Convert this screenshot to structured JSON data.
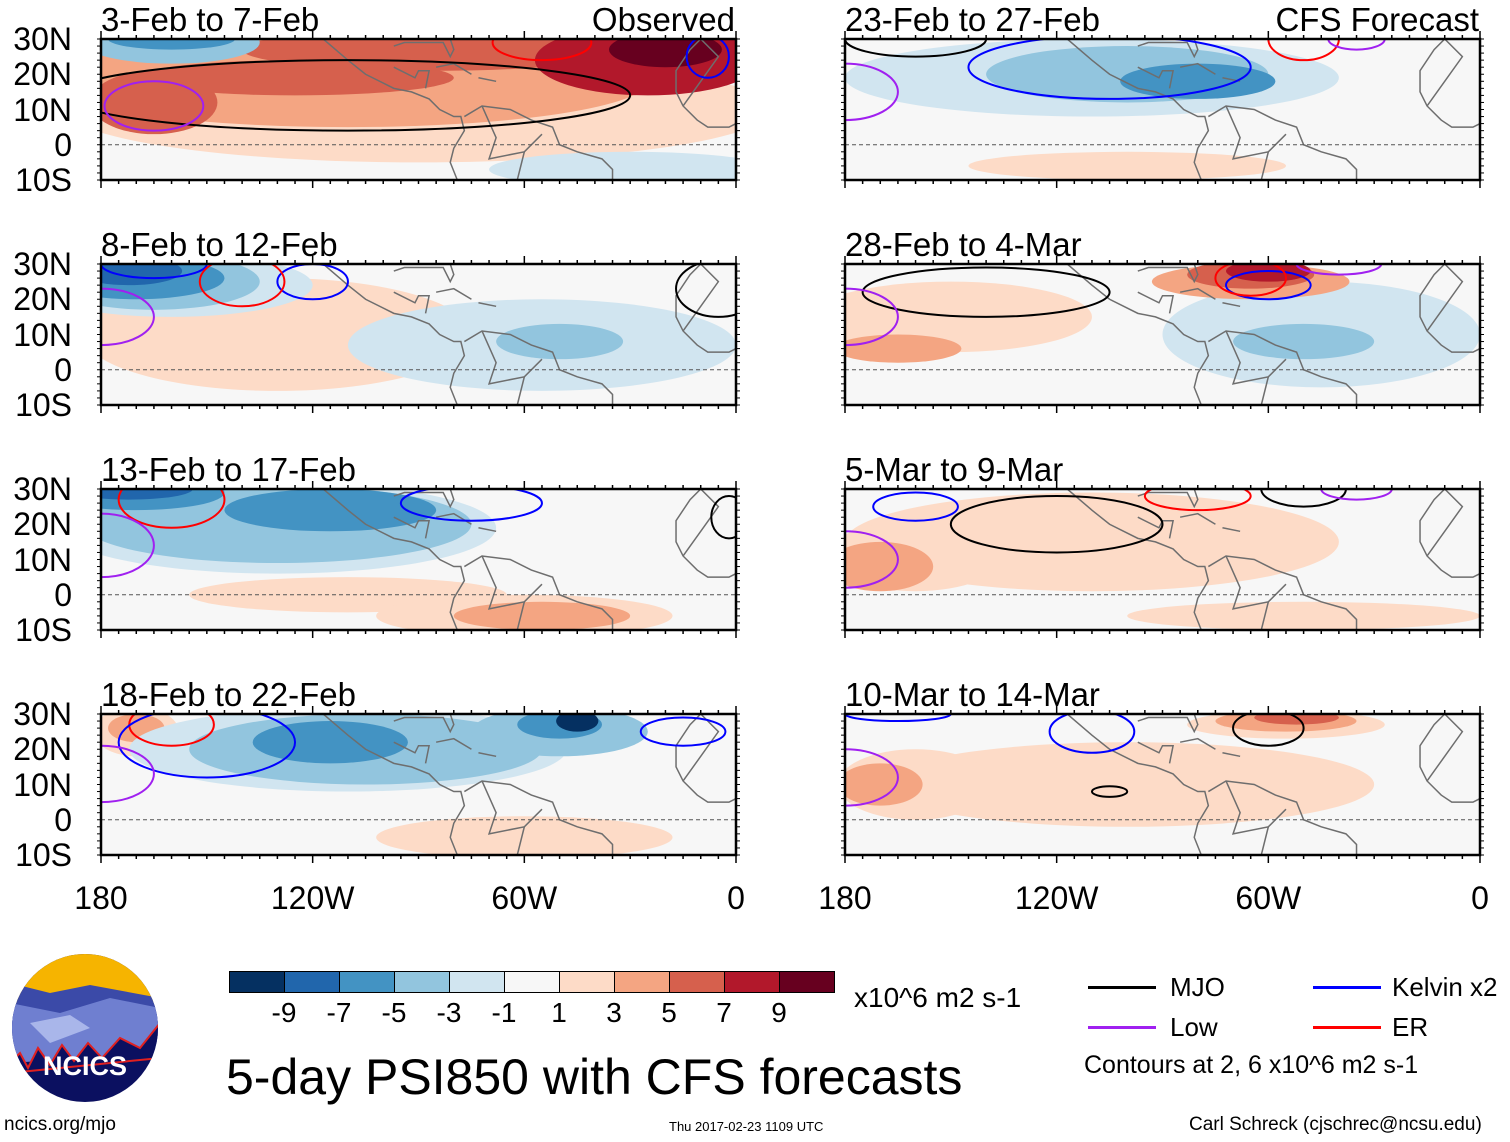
{
  "colors": {
    "-9": "#053061",
    "-7": "#2166ac",
    "-5": "#4393c3",
    "-3": "#92c5de",
    "-1": "#d1e5f0",
    "0": "#f7f7f7",
    "1": "#fddbc7",
    "3": "#f4a582",
    "5": "#d6604d",
    "7": "#b2182b",
    "9": "#67001f",
    "MJO": "#000000",
    "Kelvin": "#0000ff",
    "Low": "#a020f0",
    "ER": "#ff0000",
    "coast": "#6e6e6e"
  },
  "lat_labels": [
    "30N",
    "20N",
    "10N",
    "0",
    "10S"
  ],
  "lon_labels": [
    "180",
    "120W",
    "60W",
    "0"
  ],
  "panels": [
    {
      "title": "3-Feb to 7-Feb",
      "tag": "Observed",
      "fields": [
        [
          90,
          10,
          100,
          15,
          1
        ],
        [
          30,
          -7,
          40,
          5,
          -1
        ],
        [
          110,
          18,
          85,
          13,
          3
        ],
        [
          165,
          12,
          18,
          9,
          5
        ],
        [
          125,
          19,
          45,
          5,
          5
        ],
        [
          85,
          27,
          55,
          6,
          5
        ],
        [
          25,
          24,
          32,
          10,
          7
        ],
        [
          20,
          27,
          16,
          5,
          9
        ],
        [
          160,
          29,
          25,
          6,
          -3
        ],
        [
          160,
          30,
          18,
          3,
          -5
        ]
      ],
      "contours": [
        [
          110,
          14,
          80,
          10,
          "MJO"
        ],
        [
          165,
          11,
          14,
          7,
          "Low"
        ],
        [
          55,
          29,
          14,
          5,
          "ER"
        ],
        [
          8,
          25,
          6,
          6,
          "Kelvin"
        ]
      ]
    },
    {
      "title": "8-Feb to 12-Feb",
      "tag": "",
      "fields": [
        [
          130,
          10,
          55,
          16,
          1
        ],
        [
          55,
          7,
          55,
          13,
          -1
        ],
        [
          50,
          8,
          18,
          5,
          -3
        ],
        [
          160,
          24,
          40,
          9,
          -1
        ],
        [
          165,
          25,
          30,
          8,
          -3
        ],
        [
          170,
          26,
          25,
          6,
          -5
        ],
        [
          172,
          28,
          15,
          4,
          -7
        ]
      ],
      "contours": [
        [
          165,
          30,
          15,
          4,
          "Kelvin"
        ],
        [
          120,
          25,
          10,
          5,
          "Kelvin"
        ],
        [
          140,
          25,
          12,
          7,
          "ER"
        ],
        [
          180,
          15,
          15,
          8,
          "Low"
        ],
        [
          5,
          23,
          12,
          8,
          "MJO"
        ]
      ]
    },
    {
      "title": "13-Feb to 17-Feb",
      "tag": "",
      "fields": [
        [
          110,
          0,
          45,
          5,
          1
        ],
        [
          60,
          -6,
          42,
          6,
          1
        ],
        [
          55,
          -6,
          25,
          4,
          3
        ],
        [
          130,
          19,
          62,
          13,
          -1
        ],
        [
          130,
          20,
          55,
          11,
          -3
        ],
        [
          115,
          24,
          30,
          6,
          -5
        ],
        [
          170,
          29,
          25,
          5,
          -5
        ],
        [
          172,
          30,
          18,
          3,
          -7
        ]
      ],
      "contours": [
        [
          160,
          27,
          15,
          8,
          "ER"
        ],
        [
          180,
          14,
          15,
          9,
          "Low"
        ],
        [
          75,
          26,
          20,
          5,
          "Kelvin"
        ],
        [
          2,
          22,
          5,
          6,
          "MJO"
        ]
      ]
    },
    {
      "title": "18-Feb to 22-Feb",
      "tag": "",
      "fields": [
        [
          60,
          -5,
          42,
          6,
          1
        ],
        [
          170,
          25,
          12,
          7,
          1
        ],
        [
          170,
          26,
          8,
          4,
          3
        ],
        [
          110,
          20,
          62,
          12,
          -1
        ],
        [
          105,
          20,
          50,
          10,
          -3
        ],
        [
          115,
          22,
          22,
          6,
          -5
        ],
        [
          50,
          25,
          25,
          7,
          -3
        ],
        [
          50,
          27,
          12,
          4,
          -5
        ],
        [
          45,
          28,
          6,
          3,
          -9
        ]
      ],
      "contours": [
        [
          160,
          27,
          12,
          6,
          "ER"
        ],
        [
          150,
          22,
          25,
          10,
          "Kelvin"
        ],
        [
          180,
          13,
          15,
          8,
          "Low"
        ],
        [
          15,
          25,
          12,
          4,
          "Kelvin"
        ]
      ]
    },
    {
      "title": "23-Feb to 27-Feb",
      "tag": "CFS Forecast",
      "fields": [
        [
          100,
          -6,
          45,
          4,
          1
        ],
        [
          110,
          19,
          70,
          11,
          -1
        ],
        [
          100,
          20,
          40,
          8,
          -3
        ],
        [
          80,
          18,
          22,
          5,
          -5
        ]
      ],
      "contours": [
        [
          105,
          22,
          40,
          9,
          "Kelvin"
        ],
        [
          180,
          15,
          15,
          8,
          "Low"
        ],
        [
          160,
          30,
          20,
          5,
          "MJO"
        ],
        [
          50,
          30,
          10,
          6,
          "ER"
        ],
        [
          35,
          30,
          8,
          3,
          "Low"
        ]
      ]
    },
    {
      "title": "28-Feb to 4-Mar",
      "tag": "",
      "fields": [
        [
          150,
          15,
          40,
          10,
          1
        ],
        [
          45,
          10,
          45,
          15,
          -1
        ],
        [
          50,
          8,
          20,
          5,
          -3
        ],
        [
          165,
          6,
          18,
          4,
          3
        ],
        [
          65,
          25,
          28,
          5,
          3
        ],
        [
          65,
          27,
          18,
          4,
          5
        ],
        [
          60,
          28,
          12,
          3,
          7
        ]
      ],
      "contours": [
        [
          140,
          22,
          35,
          7,
          "MJO"
        ],
        [
          60,
          24,
          12,
          4,
          "Kelvin"
        ],
        [
          65,
          26,
          10,
          5,
          "ER"
        ],
        [
          40,
          30,
          12,
          3,
          "Low"
        ],
        [
          180,
          15,
          15,
          8,
          "Low"
        ]
      ]
    },
    {
      "title": "5-Mar to 9-Mar",
      "tag": "",
      "fields": [
        [
          110,
          15,
          70,
          14,
          1
        ],
        [
          50,
          -6,
          50,
          4,
          1
        ],
        [
          160,
          11,
          25,
          10,
          1
        ],
        [
          170,
          8,
          15,
          7,
          3
        ]
      ],
      "contours": [
        [
          120,
          20,
          30,
          8,
          "MJO"
        ],
        [
          50,
          30,
          12,
          5,
          "MJO"
        ],
        [
          160,
          25,
          12,
          4,
          "Kelvin"
        ],
        [
          80,
          28,
          15,
          4,
          "ER"
        ],
        [
          35,
          30,
          10,
          3,
          "Low"
        ],
        [
          180,
          10,
          15,
          8,
          "Low"
        ]
      ]
    },
    {
      "title": "10-Mar to 14-Mar",
      "tag": "",
      "fields": [
        [
          100,
          10,
          70,
          12,
          1
        ],
        [
          160,
          10,
          22,
          10,
          1
        ],
        [
          170,
          10,
          12,
          6,
          3
        ],
        [
          55,
          27,
          28,
          4,
          1
        ],
        [
          55,
          28,
          20,
          3,
          3
        ],
        [
          52,
          29,
          12,
          2,
          5
        ]
      ],
      "contours": [
        [
          110,
          25,
          12,
          6,
          "Kelvin"
        ],
        [
          105,
          8,
          5,
          1.5,
          "MJO"
        ],
        [
          60,
          26,
          10,
          5,
          "MJO"
        ],
        [
          180,
          12,
          15,
          8,
          "Low"
        ],
        [
          165,
          30,
          15,
          2,
          "Kelvin"
        ]
      ]
    }
  ],
  "colorbar": {
    "levels": [
      "-9",
      "-7",
      "-5",
      "-3",
      "-1",
      "1",
      "3",
      "5",
      "7",
      "9"
    ],
    "units": "x10^6 m2 s-1"
  },
  "legend": {
    "items": [
      {
        "key": "MJO",
        "label": "MJO"
      },
      {
        "key": "Kelvin",
        "label": "Kelvin x2"
      },
      {
        "key": "Low",
        "label": "Low"
      },
      {
        "key": "ER",
        "label": "ER"
      }
    ],
    "note": "Contours at 2, 6 x10^6 m2 s-1"
  },
  "title": "5-day PSI850 with CFS forecasts",
  "logo_text": "NCICS",
  "footer": {
    "left": "ncics.org/mjo",
    "center": "Thu 2017-02-23 1109 UTC",
    "right": "Carl Schreck (cjschrec@ncsu.edu)"
  }
}
